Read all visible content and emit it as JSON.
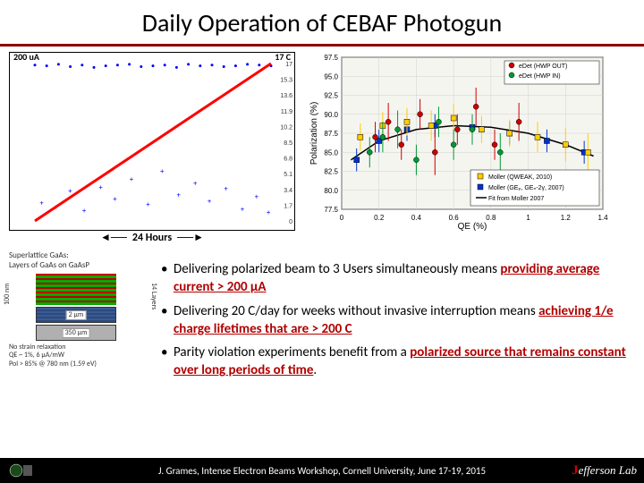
{
  "title": "Daily Operation of CEBAF Photogun",
  "left_chart": {
    "top_left_label": "200 uA",
    "top_right_label": "17 C",
    "x_axis_label": "24 Hours",
    "ylim_left": [
      0,
      200
    ],
    "ylim_right": [
      0,
      17
    ],
    "yticks_right": [
      0,
      1.7,
      3.4,
      5.1,
      6.8,
      8.5,
      10.2,
      11.9,
      13.6,
      15.3,
      17
    ],
    "current_color": "#0000ff",
    "charge_color": "#ff0000",
    "background": "#ffffff",
    "grid_color": "#cccccc",
    "current_series": {
      "x": [
        0,
        0.05,
        0.1,
        0.15,
        0.2,
        0.25,
        0.3,
        0.35,
        0.4,
        0.45,
        0.5,
        0.55,
        0.6,
        0.65,
        0.7,
        0.75,
        0.8,
        0.85,
        0.9,
        0.95,
        1.0
      ],
      "y": [
        198,
        197,
        199,
        196,
        198,
        195,
        197,
        198,
        199,
        196,
        197,
        198,
        195,
        199,
        197,
        198,
        196,
        197,
        199,
        198,
        197
      ]
    },
    "charge_series": {
      "x": [
        0,
        0.1,
        0.2,
        0.3,
        0.4,
        0.5,
        0.6,
        0.7,
        0.8,
        0.9,
        1.0
      ],
      "y": [
        0,
        1.7,
        3.4,
        5.1,
        6.8,
        8.5,
        10.2,
        11.9,
        13.6,
        15.3,
        17
      ]
    },
    "scatter_noise": [
      {
        "x": 0.02,
        "y": 20
      },
      {
        "x": 0.08,
        "y": 15
      },
      {
        "x": 0.14,
        "y": 35
      },
      {
        "x": 0.2,
        "y": 10
      },
      {
        "x": 0.27,
        "y": 40
      },
      {
        "x": 0.33,
        "y": 25
      },
      {
        "x": 0.4,
        "y": 50
      },
      {
        "x": 0.47,
        "y": 18
      },
      {
        "x": 0.53,
        "y": 60
      },
      {
        "x": 0.6,
        "y": 30
      },
      {
        "x": 0.67,
        "y": 45
      },
      {
        "x": 0.73,
        "y": 22
      },
      {
        "x": 0.8,
        "y": 38
      },
      {
        "x": 0.87,
        "y": 12
      },
      {
        "x": 0.93,
        "y": 28
      },
      {
        "x": 0.98,
        "y": 8
      }
    ]
  },
  "right_chart": {
    "xlabel": "QE (%)",
    "ylabel": "Polarization (%)",
    "xlim": [
      0,
      1.4
    ],
    "ylim": [
      77.5,
      97.5
    ],
    "xticks": [
      0,
      0.2,
      0.4,
      0.6,
      0.8,
      1.0,
      1.2,
      1.4
    ],
    "yticks": [
      77.5,
      80.0,
      82.5,
      85.0,
      87.5,
      90.0,
      92.5,
      95.0,
      97.5
    ],
    "label_fontsize": 10,
    "tick_fontsize": 8,
    "background": "#f5f5f0",
    "grid_color": "#d0d0d0",
    "legend": [
      {
        "label": "eDet (HWP OUT)",
        "marker": "circle",
        "color": "#cc0000"
      },
      {
        "label": "eDet (HWP IN)",
        "marker": "circle",
        "color": "#009933"
      },
      {
        "label": "Moller (QWEAK, 2010)",
        "marker": "square",
        "color": "#ffcc00"
      },
      {
        "label": "Moller (GEₚ, GEₙ-2γ, 2007)",
        "marker": "square",
        "color": "#0033cc"
      },
      {
        "label": "Fit from Moller 2007",
        "marker": "line",
        "color": "#000000"
      }
    ],
    "fit_line": {
      "x": [
        0.05,
        0.2,
        0.4,
        0.6,
        0.8,
        1.0,
        1.2,
        1.35
      ],
      "y": [
        84,
        86.5,
        88,
        88.5,
        88.3,
        87.5,
        86,
        84.5
      ]
    },
    "points_red": [
      {
        "x": 0.18,
        "y": 87,
        "e": 2
      },
      {
        "x": 0.25,
        "y": 89,
        "e": 2.5
      },
      {
        "x": 0.32,
        "y": 86,
        "e": 2
      },
      {
        "x": 0.42,
        "y": 90,
        "e": 2
      },
      {
        "x": 0.5,
        "y": 85,
        "e": 3
      },
      {
        "x": 0.62,
        "y": 88,
        "e": 2
      },
      {
        "x": 0.72,
        "y": 91,
        "e": 2.5
      },
      {
        "x": 0.82,
        "y": 86,
        "e": 2
      },
      {
        "x": 0.95,
        "y": 89,
        "e": 2.5
      }
    ],
    "points_green": [
      {
        "x": 0.15,
        "y": 85,
        "e": 2
      },
      {
        "x": 0.22,
        "y": 87,
        "e": 2
      },
      {
        "x": 0.3,
        "y": 88,
        "e": 2.5
      },
      {
        "x": 0.4,
        "y": 84,
        "e": 2
      },
      {
        "x": 0.52,
        "y": 89,
        "e": 2
      },
      {
        "x": 0.6,
        "y": 86,
        "e": 2
      },
      {
        "x": 0.7,
        "y": 88,
        "e": 2
      },
      {
        "x": 0.85,
        "y": 85,
        "e": 2.5
      }
    ],
    "points_yellow": [
      {
        "x": 0.1,
        "y": 87,
        "e": 1.8
      },
      {
        "x": 0.22,
        "y": 88.5,
        "e": 1.8
      },
      {
        "x": 0.35,
        "y": 89,
        "e": 1.8
      },
      {
        "x": 0.48,
        "y": 88.5,
        "e": 2
      },
      {
        "x": 0.6,
        "y": 89.5,
        "e": 1.8
      },
      {
        "x": 0.75,
        "y": 88,
        "e": 1.8
      },
      {
        "x": 0.9,
        "y": 87.5,
        "e": 1.8
      },
      {
        "x": 1.05,
        "y": 87,
        "e": 2
      },
      {
        "x": 1.2,
        "y": 86,
        "e": 2.2
      },
      {
        "x": 1.32,
        "y": 85,
        "e": 2.5
      }
    ],
    "points_blue": [
      {
        "x": 0.08,
        "y": 84,
        "e": 1.5
      },
      {
        "x": 0.2,
        "y": 86.5,
        "e": 1.5
      },
      {
        "x": 0.35,
        "y": 88,
        "e": 1.5
      },
      {
        "x": 0.5,
        "y": 88.5,
        "e": 1.5
      },
      {
        "x": 0.7,
        "y": 88.3,
        "e": 1.5
      },
      {
        "x": 0.9,
        "y": 87.5,
        "e": 1.5
      },
      {
        "x": 1.1,
        "y": 86.5,
        "e": 1.5
      },
      {
        "x": 1.3,
        "y": 85,
        "e": 1.5
      }
    ]
  },
  "diagram": {
    "title": "Superlattice GaAs:\nLayers of GaAs on GaAsP",
    "n_layers_label": "14 Layers",
    "height_label": "100 nm",
    "buffer_label": "2 µm",
    "substrate_label": "350 µm",
    "caption": "No strain relaxation\nQE ~ 1%, 6 µA/mW\nPol > 85% @ 780 nm (1.59 eV)"
  },
  "bullets": [
    {
      "pre": "Delivering polarized beam to 3 Users simultaneously means ",
      "em": "providing average current > 200 µA",
      "post": ""
    },
    {
      "pre": "Delivering 20 C/day for weeks without invasive interruption means ",
      "em": "achieving 1/e charge lifetimes that are > 200 C",
      "post": ""
    },
    {
      "pre": "Parity violation experiments benefit from a ",
      "em": "polarized source that remains constant over long periods of time",
      "post": "."
    }
  ],
  "footer": {
    "text": "J. Grames, Intense Electron Beams Workshop, Cornell University, June 17-19, 2015",
    "right_logo": "Jefferson Lab"
  }
}
